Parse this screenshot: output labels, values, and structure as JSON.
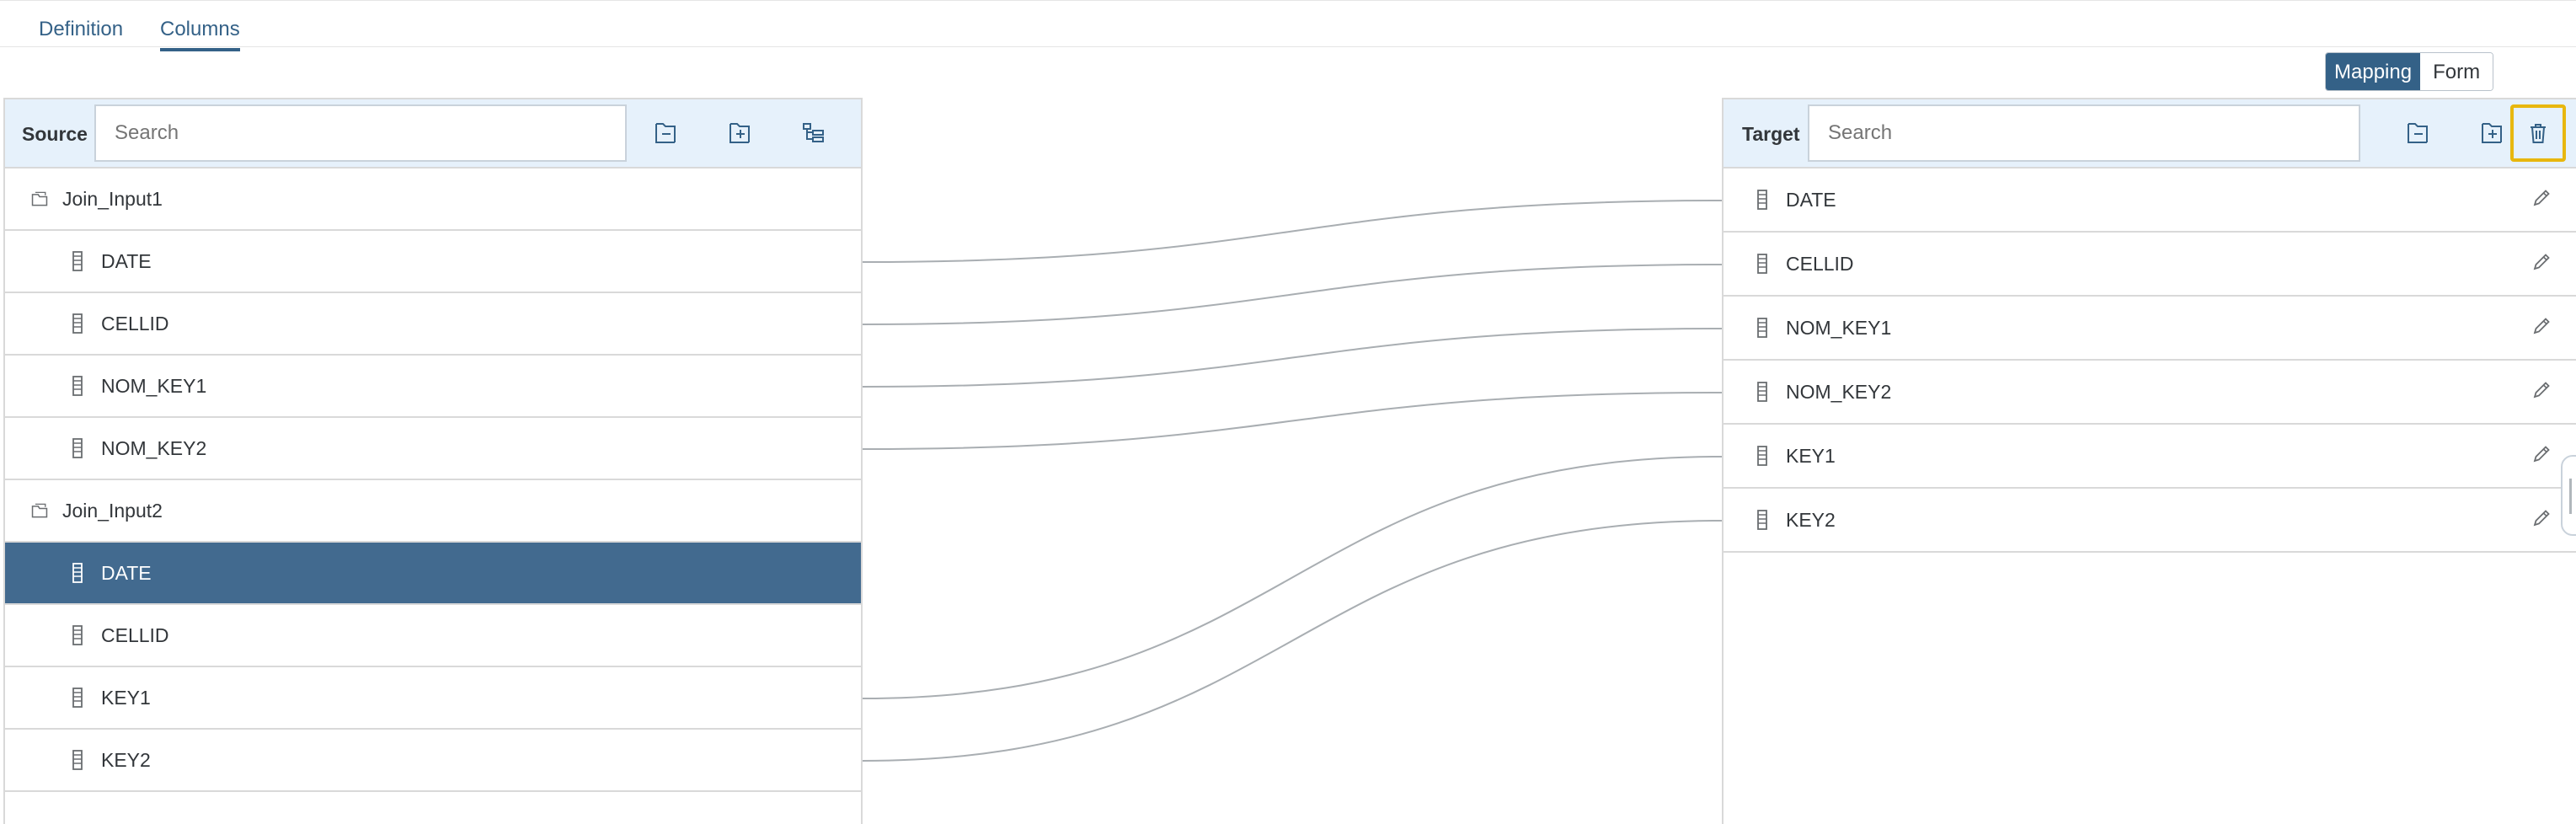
{
  "tabs": [
    {
      "label": "Definition",
      "active": false
    },
    {
      "label": "Columns",
      "active": true
    }
  ],
  "view_toggle": {
    "mapping_label": "Mapping",
    "form_label": "Form",
    "selected": "Mapping"
  },
  "source": {
    "title": "Source",
    "search_placeholder": "Search",
    "groups": [
      {
        "name": "Join_Input1",
        "columns": [
          "DATE",
          "CELLID",
          "NOM_KEY1",
          "NOM_KEY2"
        ]
      },
      {
        "name": "Join_Input2",
        "columns": [
          "DATE",
          "CELLID",
          "KEY1",
          "KEY2"
        ]
      }
    ],
    "selected_row": "Join_Input2.DATE"
  },
  "target": {
    "title": "Target",
    "search_placeholder": "Search",
    "columns": [
      "DATE",
      "CELLID",
      "NOM_KEY1",
      "NOM_KEY2",
      "KEY1",
      "KEY2"
    ]
  },
  "mappings": [
    {
      "from": "Join_Input1.DATE",
      "to": "DATE"
    },
    {
      "from": "Join_Input1.CELLID",
      "to": "CELLID"
    },
    {
      "from": "Join_Input1.NOM_KEY1",
      "to": "NOM_KEY1"
    },
    {
      "from": "Join_Input1.NOM_KEY2",
      "to": "NOM_KEY2"
    },
    {
      "from": "Join_Input2.KEY1",
      "to": "KEY1"
    },
    {
      "from": "Join_Input2.KEY2",
      "to": "KEY2"
    }
  ],
  "colors": {
    "accent": "#346187",
    "selected_row": "#426a8f",
    "header_bg": "#e6f1fb",
    "highlight": "#e8b70e"
  }
}
